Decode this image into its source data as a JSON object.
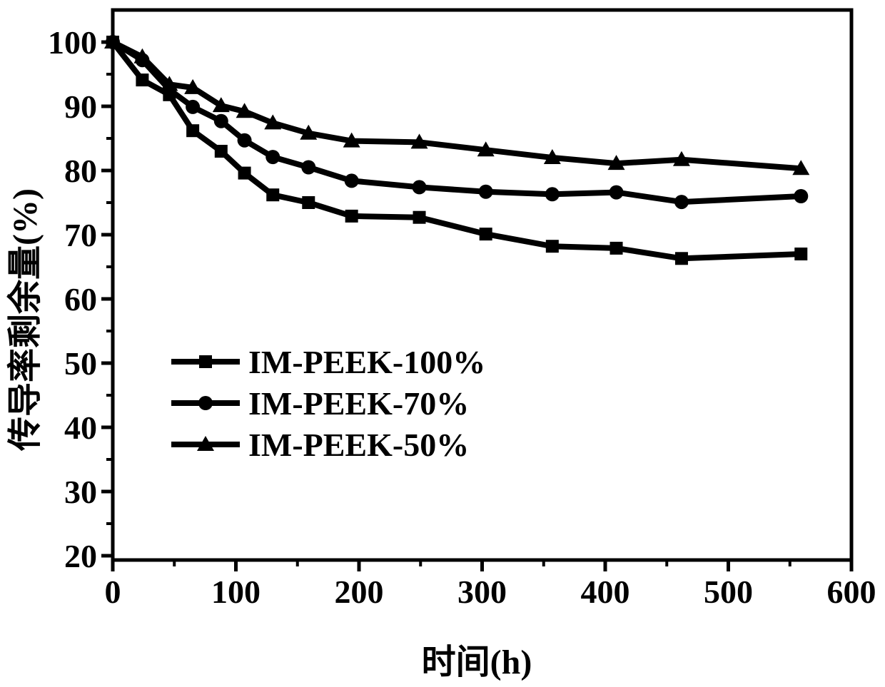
{
  "figure": {
    "background": "#ffffff",
    "ink": "#000000",
    "kind": "line-chart-figure"
  },
  "chart_data": {
    "type": "line",
    "title": "",
    "xlabel": "时间(h)",
    "ylabel": "传导率剩余量(%)",
    "xlim": [
      0,
      600
    ],
    "ylim": [
      20,
      100
    ],
    "x_major_ticks": [
      0,
      100,
      200,
      300,
      400,
      500,
      600
    ],
    "x_minor_ticks": [
      50,
      150,
      250,
      350,
      450,
      550
    ],
    "y_major_ticks": [
      20,
      30,
      40,
      50,
      60,
      70,
      80,
      90,
      100
    ],
    "y_minor_ticks": [
      25,
      35,
      45,
      55,
      65,
      75,
      85,
      95
    ],
    "grid": false,
    "legend_position": "center-left",
    "line_color": "#000000",
    "x": [
      0,
      24,
      46,
      65,
      88,
      107,
      130,
      159,
      194,
      249,
      303,
      357,
      409,
      462,
      559
    ],
    "series": [
      {
        "name": "IM-PEEK-100%",
        "marker": "square",
        "values": [
          100,
          94.1,
          91.8,
          86.2,
          83.0,
          79.6,
          76.2,
          75.0,
          72.9,
          72.7,
          70.1,
          68.2,
          67.9,
          66.3,
          67.0
        ]
      },
      {
        "name": "IM-PEEK-70%",
        "marker": "circle",
        "values": [
          100,
          97.2,
          92.6,
          89.9,
          87.7,
          84.7,
          82.1,
          80.5,
          78.4,
          77.4,
          76.7,
          76.3,
          76.6,
          75.1,
          76.0
        ]
      },
      {
        "name": "IM-PEEK-50%",
        "marker": "triangle",
        "values": [
          100,
          97.7,
          93.4,
          92.9,
          90.1,
          89.2,
          87.4,
          85.8,
          84.6,
          84.4,
          83.2,
          82.0,
          81.1,
          81.7,
          80.3
        ]
      }
    ]
  }
}
